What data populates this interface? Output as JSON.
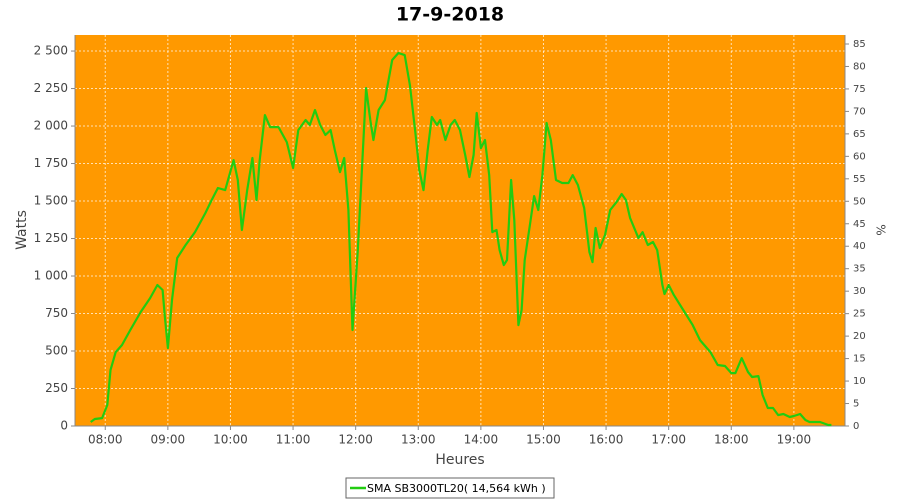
{
  "chart_data": {
    "type": "line",
    "title": "17-9-2018",
    "xlabel": "Heures",
    "ylabel": "Watts",
    "y2label": "%",
    "x": [
      "07:46",
      "07:50",
      "07:57",
      "08:02",
      "08:05",
      "08:10",
      "08:16",
      "08:24",
      "08:34",
      "08:43",
      "08:50",
      "08:55",
      "08:57",
      "09:00",
      "09:04",
      "09:09",
      "09:17",
      "09:26",
      "09:36",
      "09:42",
      "09:48",
      "09:55",
      "10:03",
      "10:07",
      "10:11",
      "10:16",
      "10:21",
      "10:25",
      "10:28",
      "10:33",
      "10:38",
      "10:46",
      "10:54",
      "11:00",
      "11:05",
      "11:12",
      "11:16",
      "11:21",
      "11:26",
      "11:31",
      "11:36",
      "11:40",
      "11:45",
      "11:49",
      "11:53",
      "11:57",
      "12:02",
      "12:06",
      "12:10",
      "12:14",
      "12:17",
      "12:22",
      "12:28",
      "12:35",
      "12:41",
      "12:47",
      "12:52",
      "12:57",
      "13:01",
      "13:05",
      "13:09",
      "13:13",
      "13:18",
      "13:21",
      "13:26",
      "13:31",
      "13:35",
      "13:40",
      "13:45",
      "13:49",
      "13:53",
      "13:56",
      "14:00",
      "14:04",
      "14:08",
      "14:11",
      "14:15",
      "14:18",
      "14:22",
      "14:25",
      "14:29",
      "14:32",
      "14:36",
      "14:39",
      "14:42",
      "14:47",
      "14:51",
      "14:55",
      "14:59",
      "15:03",
      "15:07",
      "15:12",
      "15:18",
      "15:24",
      "15:28",
      "15:33",
      "15:39",
      "15:44",
      "15:47",
      "15:50",
      "15:54",
      "15:59",
      "16:04",
      "16:10",
      "16:15",
      "16:19",
      "16:23",
      "16:31",
      "16:35",
      "16:40",
      "16:45",
      "16:49",
      "16:54",
      "16:56",
      "17:00",
      "17:05",
      "17:11",
      "17:17",
      "17:23",
      "17:30",
      "17:40",
      "17:47",
      "17:54",
      "18:00",
      "18:04",
      "18:10",
      "18:16",
      "18:20",
      "18:26",
      "18:30",
      "18:35",
      "18:40",
      "18:45",
      "18:50",
      "18:56",
      "19:00",
      "19:06",
      "19:11",
      "19:15",
      "19:25",
      "19:33",
      "19:36"
    ],
    "series": [
      {
        "name": "SMA SB3000TL20( 14,564 kWh )",
        "color": "#22cc11",
        "values": [
          27,
          47,
          53,
          140,
          373,
          493,
          540,
          640,
          760,
          853,
          940,
          907,
          740,
          520,
          840,
          1120,
          1207,
          1293,
          1420,
          1507,
          1587,
          1573,
          1773,
          1640,
          1307,
          1573,
          1787,
          1507,
          1773,
          2073,
          1993,
          1993,
          1893,
          1720,
          1973,
          2040,
          2007,
          2107,
          2007,
          1940,
          1973,
          1840,
          1693,
          1787,
          1440,
          640,
          1173,
          1707,
          2253,
          2040,
          1907,
          2107,
          2173,
          2440,
          2487,
          2473,
          2273,
          1973,
          1707,
          1573,
          1840,
          2060,
          2007,
          2040,
          1907,
          2007,
          2040,
          1973,
          1807,
          1660,
          1807,
          2087,
          1853,
          1907,
          1673,
          1293,
          1307,
          1173,
          1073,
          1107,
          1640,
          1373,
          673,
          773,
          1107,
          1340,
          1533,
          1440,
          1673,
          2020,
          1907,
          1640,
          1620,
          1620,
          1673,
          1607,
          1453,
          1160,
          1093,
          1320,
          1187,
          1273,
          1440,
          1493,
          1547,
          1507,
          1387,
          1253,
          1293,
          1207,
          1227,
          1173,
          940,
          880,
          940,
          873,
          807,
          740,
          673,
          573,
          493,
          407,
          400,
          353,
          353,
          453,
          360,
          327,
          333,
          207,
          120,
          120,
          73,
          80,
          60,
          67,
          80,
          40,
          27,
          27,
          7,
          7
        ]
      }
    ],
    "xlim": [
      "07:31",
      "19:49"
    ],
    "xticks": [
      "08:00",
      "09:00",
      "10:00",
      "11:00",
      "12:00",
      "13:00",
      "14:00",
      "15:00",
      "16:00",
      "17:00",
      "18:00",
      "19:00"
    ],
    "ylim": [
      0,
      2607
    ],
    "yticks": [
      0,
      250,
      500,
      750,
      {
        "value": 1000,
        "label": "1 000"
      },
      {
        "value": 1250,
        "label": "1 250"
      },
      {
        "value": 1500,
        "label": "1 500"
      },
      {
        "value": 1750,
        "label": "1 750"
      },
      {
        "value": 2000,
        "label": "2 000"
      },
      {
        "value": 2250,
        "label": "2 250"
      },
      {
        "value": 2500,
        "label": "2 500"
      }
    ],
    "y2lim": [
      0,
      87
    ],
    "y2ticks": [
      0,
      5,
      10,
      15,
      20,
      25,
      30,
      35,
      40,
      45,
      50,
      55,
      60,
      65,
      70,
      75,
      80,
      85
    ],
    "grid": true,
    "background": "#ff9900",
    "legend": "bottom"
  }
}
